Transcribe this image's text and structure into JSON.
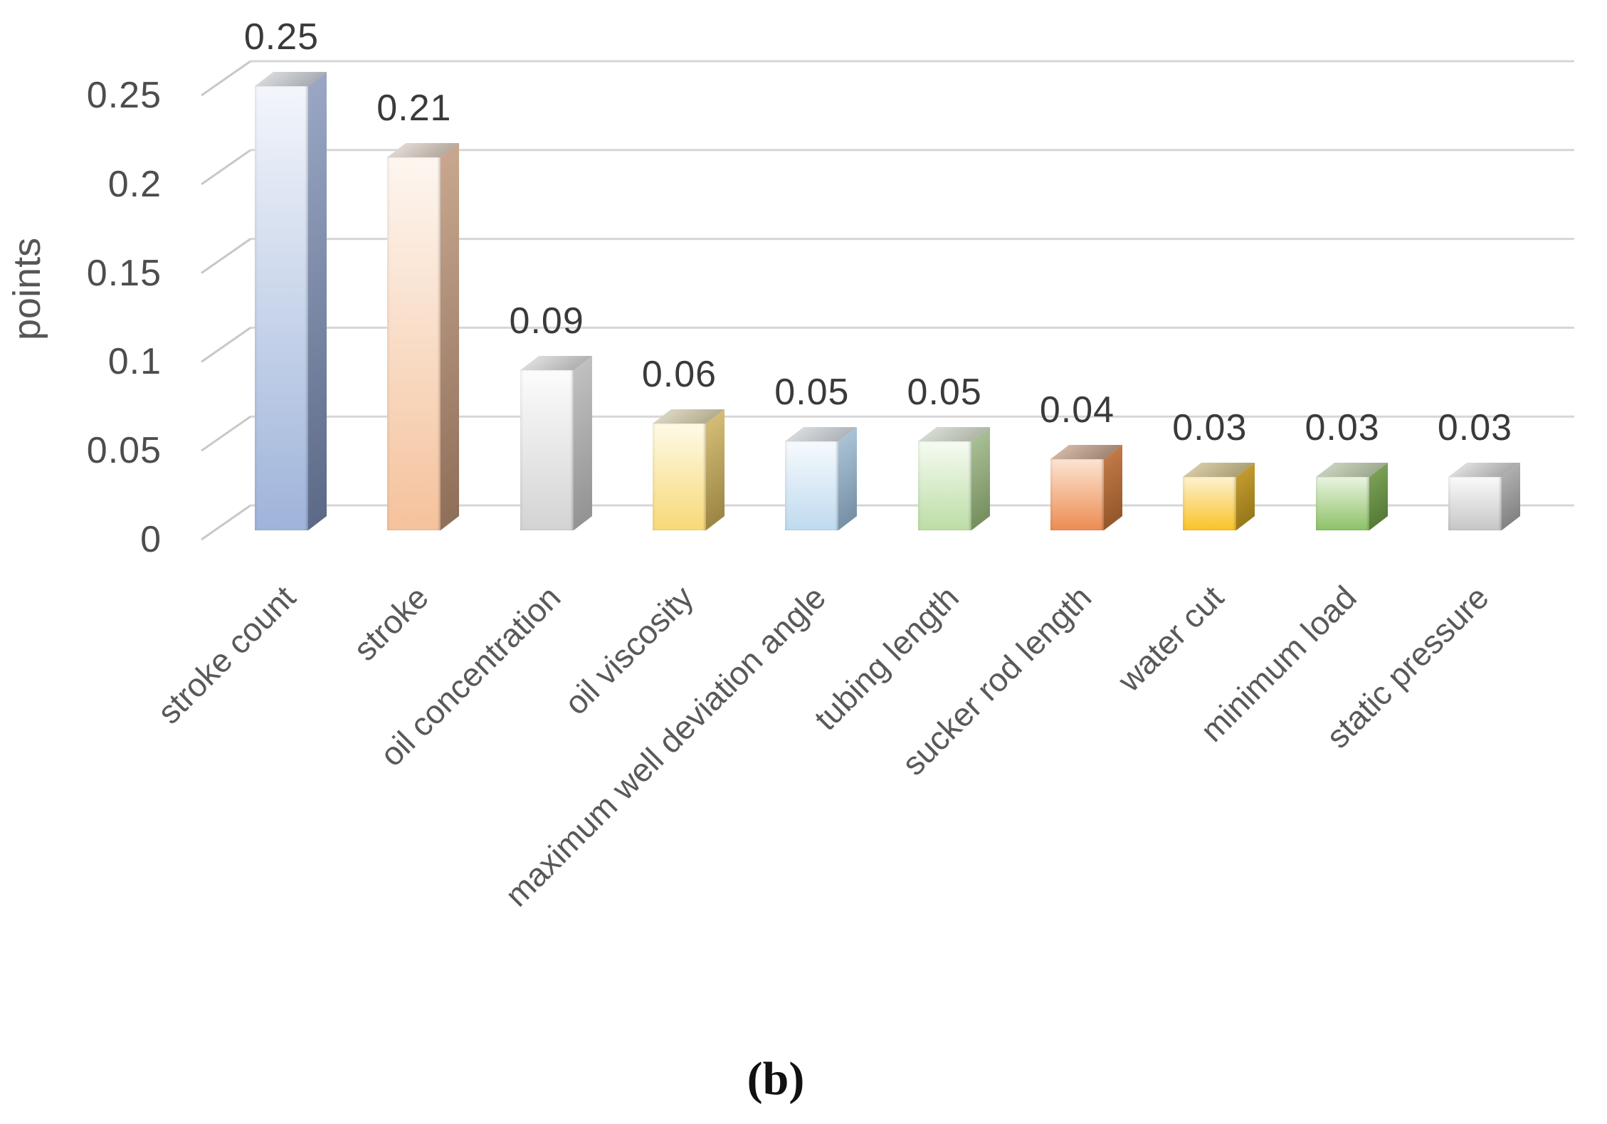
{
  "figure": {
    "caption": "(b)",
    "background": "#FFFFFF"
  },
  "chart_data": {
    "type": "bar",
    "style": "3d-clustered-column",
    "title": "",
    "xlabel": "",
    "ylabel": "points",
    "categories": [
      "stroke count",
      "stroke",
      "oil concentration",
      "oil viscosity",
      "maximum well deviation angle",
      "tubing length",
      "sucker rod length",
      "water cut",
      "minimum load",
      "static pressure"
    ],
    "values": [
      0.25,
      0.21,
      0.09,
      0.06,
      0.05,
      0.05,
      0.04,
      0.03,
      0.03,
      0.03
    ],
    "data_labels": [
      "0.25",
      "0.21",
      "0.09",
      "0.06",
      "0.05",
      "0.05",
      "0.04",
      "0.03",
      "0.03",
      "0.03"
    ],
    "y_ticks": [
      0,
      0.05,
      0.1,
      0.15,
      0.2,
      0.25
    ],
    "y_tick_labels": [
      "0",
      "0.05",
      "0.1",
      "0.15",
      "0.2",
      "0.25"
    ],
    "ylim": [
      0,
      0.25
    ],
    "grid": true,
    "legend_position": "none",
    "colors": {
      "gridline": "#D6D6D6",
      "tick": "#C8C8C8",
      "axis_text": "#4D4D4D",
      "category_text": "#595959",
      "data_label_text": "#3A3A3A",
      "background": "#FFFFFF"
    },
    "bar_styles": [
      {
        "name": "blue",
        "front_top": "#F3F6FB",
        "front_bottom": "#9FB4DA",
        "side_top": "#9AA7C4",
        "side_bottom": "#5C6A88",
        "top_light": "#D6D8DB",
        "top_dark": "#A9ACB3"
      },
      {
        "name": "orange",
        "front_top": "#FDF6F0",
        "front_bottom": "#F5C29C",
        "side_top": "#C9A78F",
        "side_bottom": "#8E6F5A",
        "top_light": "#DFD8D2",
        "top_dark": "#B5A99F"
      },
      {
        "name": "gray",
        "front_top": "#FCFCFC",
        "front_bottom": "#D3D3D3",
        "side_top": "#C0C0C0",
        "side_bottom": "#939393",
        "top_light": "#DCDCDC",
        "top_dark": "#B0B0B0"
      },
      {
        "name": "yellow",
        "front_top": "#FEFAE6",
        "front_bottom": "#F7D977",
        "side_top": "#D2BC76",
        "side_bottom": "#9C8544",
        "top_light": "#DAD5C0",
        "top_dark": "#B3AC8E"
      },
      {
        "name": "light-blue",
        "front_top": "#F6FAFD",
        "front_bottom": "#BFDAEE",
        "side_top": "#A9C2D6",
        "side_bottom": "#7790A5",
        "top_light": "#D7DADC",
        "top_dark": "#AEB4BA"
      },
      {
        "name": "light-green",
        "front_top": "#F6FBF2",
        "front_bottom": "#BCDDA6",
        "side_top": "#A8BF95",
        "side_bottom": "#768F5F",
        "top_light": "#D6DAD2",
        "top_dark": "#AFB6A8"
      },
      {
        "name": "deep-orange",
        "front_top": "#FCE4D1",
        "front_bottom": "#EC8C52",
        "side_top": "#C17947",
        "side_bottom": "#94572B",
        "top_light": "#CFB6A5",
        "top_dark": "#A08573"
      },
      {
        "name": "gold",
        "front_top": "#FDF2CE",
        "front_bottom": "#FAC227",
        "side_top": "#C29A2E",
        "side_bottom": "#97781A",
        "top_light": "#D4C9A4",
        "top_dark": "#AC9F74"
      },
      {
        "name": "deep-green",
        "front_top": "#E9F4E1",
        "front_bottom": "#8DC166",
        "side_top": "#79A055",
        "side_bottom": "#567B38",
        "top_light": "#C7D1BD",
        "top_dark": "#9EAA90"
      },
      {
        "name": "silver",
        "front_top": "#FAFAFA",
        "front_bottom": "#C6C6C6",
        "side_top": "#AEAEAE",
        "side_bottom": "#828282",
        "top_light": "#DDDDDD",
        "top_dark": "#A8A8A8"
      }
    ]
  }
}
